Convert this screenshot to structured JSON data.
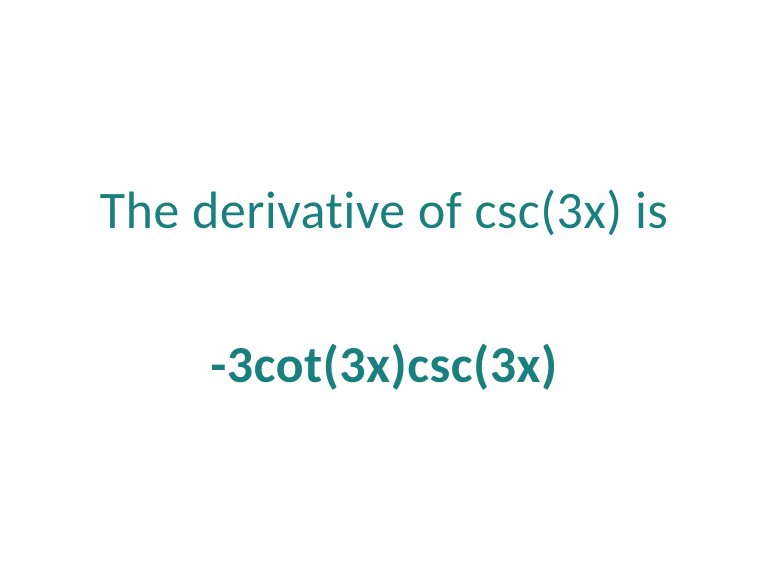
{
  "math_card": {
    "statement": "The derivative of csc(3x) is",
    "answer": "-3cot(3x)csc(3x)",
    "text_color": "#1a7f7f",
    "background_color": "#ffffff",
    "statement_fontsize": 52,
    "statement_fontweight": 400,
    "answer_fontsize": 52,
    "answer_fontweight": 700,
    "font_family": "Calibri",
    "spacing_between": 90
  }
}
